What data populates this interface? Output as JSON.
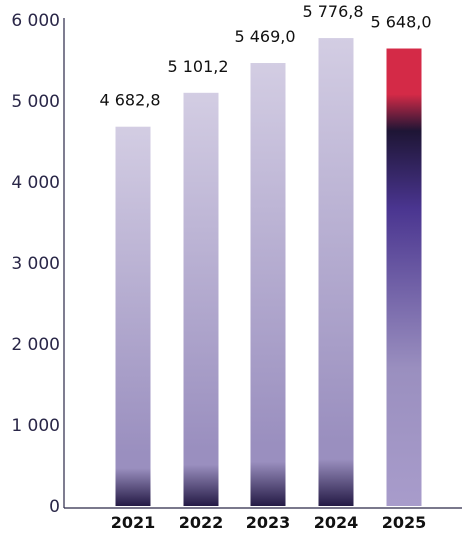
{
  "chart_data": {
    "type": "bar",
    "categories": [
      "2021",
      "2022",
      "2023",
      "2024",
      "2025"
    ],
    "values": [
      4682.8,
      5101.2,
      5469.0,
      5776.8,
      5648.0
    ],
    "value_labels": [
      "4 682,8",
      "5 101,2",
      "5 469,0",
      "5 776,8",
      "5 648,0"
    ],
    "y_ticks": [
      0,
      1000,
      2000,
      3000,
      4000,
      5000,
      6000
    ],
    "y_tick_labels": [
      "0",
      "1 000",
      "2 000",
      "3 000",
      "4 000",
      "5 000",
      "6 000"
    ],
    "ylim": [
      0,
      6000
    ],
    "title": "",
    "xlabel": "",
    "ylabel": "",
    "grid": false,
    "legend": "none",
    "colors": {
      "bar_light": "#d3cde3",
      "bar_mid": "#9a8fbf",
      "bar_dark": "#241a45",
      "highlight_top": "#d42a47",
      "highlight_dark": "#1e1535",
      "highlight_violet": "#4a3590",
      "highlight_light": "#a89ccb",
      "axis": "#2a2748"
    }
  }
}
